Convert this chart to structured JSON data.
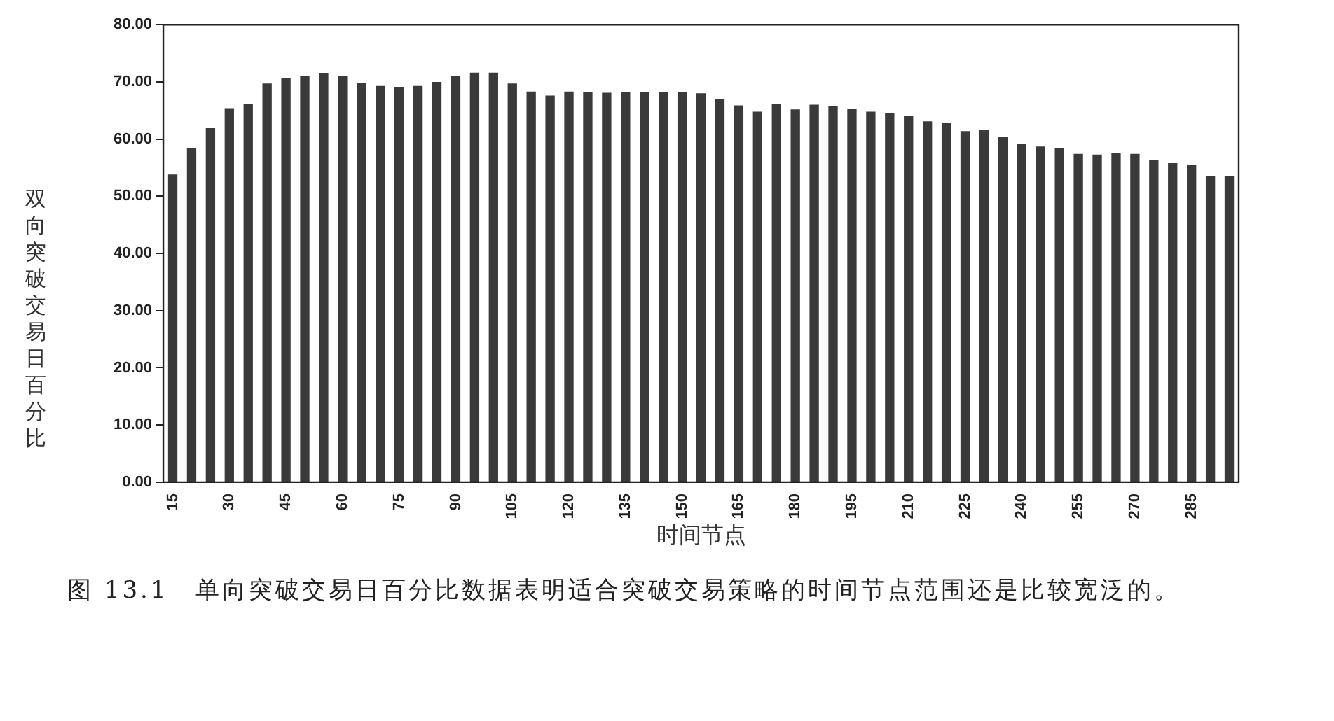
{
  "chart_data": {
    "type": "bar",
    "xlabel": "时间节点",
    "ylabel": "双向突破交易日百分比",
    "categories": [
      "15",
      null,
      null,
      "30",
      null,
      null,
      "45",
      null,
      null,
      "60",
      null,
      null,
      "75",
      null,
      null,
      "90",
      null,
      null,
      "105",
      null,
      null,
      "120",
      null,
      null,
      "135",
      null,
      null,
      "150",
      null,
      null,
      "165",
      null,
      null,
      "180",
      null,
      null,
      "195",
      null,
      null,
      "210",
      null,
      null,
      "225",
      null,
      null,
      "240",
      null,
      null,
      "255",
      null,
      null,
      "270",
      null,
      null,
      "285",
      null,
      null
    ],
    "values": [
      53.8,
      58.5,
      61.9,
      65.4,
      66.2,
      69.7,
      70.7,
      71.0,
      71.5,
      71.0,
      69.8,
      69.3,
      69.0,
      69.3,
      70.0,
      71.1,
      71.6,
      71.6,
      69.7,
      68.3,
      67.6,
      68.3,
      68.2,
      68.1,
      68.2,
      68.2,
      68.2,
      68.2,
      68.0,
      67.0,
      65.9,
      64.8,
      66.2,
      65.2,
      66.0,
      65.7,
      65.3,
      64.8,
      64.5,
      64.1,
      63.1,
      62.8,
      61.4,
      61.6,
      60.4,
      59.1,
      58.7,
      58.4,
      57.4,
      57.3,
      57.5,
      57.4,
      56.4,
      55.8,
      55.5,
      53.6,
      53.6
    ],
    "color": "#3a3a3a",
    "ylim": [
      0,
      80
    ],
    "yticks": [
      {
        "value": 0,
        "label": "0.00"
      },
      {
        "value": 10,
        "label": "10.00"
      },
      {
        "value": 20,
        "label": "20.00"
      },
      {
        "value": 30,
        "label": "30.00"
      },
      {
        "value": 40,
        "label": "40.00"
      },
      {
        "value": 50,
        "label": "50.00"
      },
      {
        "value": 60,
        "label": "60.00"
      },
      {
        "value": 70,
        "label": "70.00"
      },
      {
        "value": 80,
        "label": "80.00"
      }
    ],
    "grid": false,
    "legend": false,
    "annotations": [
      "图 13.1　单向突破交易日百分比数据表明适合突破交易策略的时间节点范围还是比较宽泛的。"
    ]
  }
}
